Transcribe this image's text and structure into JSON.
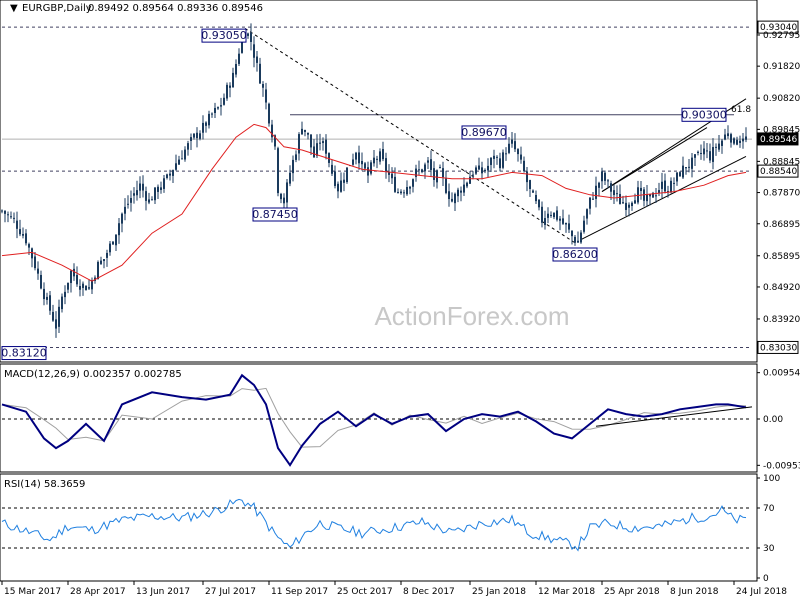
{
  "header": {
    "symbol": "EURGBP,Daily",
    "ohlc": "0.89492 0.89564 0.89336 0.89546"
  },
  "watermark": "ActionForex.com",
  "colors": {
    "candle": "#1a3a5c",
    "ma": "#e02020",
    "macd": "#000080",
    "signal": "#a0a0a0",
    "rsi": "#2080e0",
    "label_border": "#000080",
    "current_bg": "#000000"
  },
  "chart_data": [
    {
      "type": "candlestick",
      "title": "EURGBP,Daily",
      "ylim": [
        0.827,
        0.9345
      ],
      "y_ticks": [
        "0.93040",
        "0.92795",
        "0.91820",
        "0.90820",
        "0.89845",
        "0.89546",
        "0.88845",
        "0.88540",
        "0.87870",
        "0.86895",
        "0.85895",
        "0.84920",
        "0.83920",
        "0.83030"
      ],
      "x_ticks": [
        "15 Mar 2017",
        "28 Apr 2017",
        "13 Jun 2017",
        "27 Jul 2017",
        "11 Sep 2017",
        "25 Oct 2017",
        "8 Dec 2017",
        "25 Jan 2018",
        "12 Mar 2018",
        "25 Apr 2018",
        "8 Jun 2018",
        "24 Jul 2018"
      ],
      "close_path": [
        [
          0,
          0.873
        ],
        [
          4,
          0.87
        ],
        [
          8,
          0.864
        ],
        [
          11,
          0.856
        ],
        [
          14,
          0.847
        ],
        [
          16,
          0.842
        ],
        [
          18,
          0.837
        ],
        [
          20,
          0.846
        ],
        [
          23,
          0.854
        ],
        [
          26,
          0.85
        ],
        [
          29,
          0.849
        ],
        [
          32,
          0.856
        ],
        [
          34,
          0.858
        ],
        [
          37,
          0.864
        ],
        [
          40,
          0.872
        ],
        [
          43,
          0.877
        ],
        [
          46,
          0.881
        ],
        [
          49,
          0.876
        ],
        [
          52,
          0.88
        ],
        [
          55,
          0.883
        ],
        [
          58,
          0.888
        ],
        [
          61,
          0.892
        ],
        [
          64,
          0.896
        ],
        [
          67,
          0.899
        ],
        [
          70,
          0.903
        ],
        [
          73,
          0.906
        ],
        [
          75,
          0.911
        ],
        [
          77,
          0.915
        ],
        [
          79,
          0.923
        ],
        [
          81,
          0.93
        ],
        [
          83,
          0.926
        ],
        [
          85,
          0.918
        ],
        [
          87,
          0.911
        ],
        [
          89,
          0.902
        ],
        [
          91,
          0.893
        ],
        [
          92,
          0.88
        ],
        [
          94,
          0.876
        ],
        [
          96,
          0.885
        ],
        [
          98,
          0.892
        ],
        [
          100,
          0.9
        ],
        [
          102,
          0.896
        ],
        [
          104,
          0.89
        ],
        [
          106,
          0.895
        ],
        [
          108,
          0.892
        ],
        [
          110,
          0.885
        ],
        [
          112,
          0.88
        ],
        [
          114,
          0.884
        ],
        [
          116,
          0.888
        ],
        [
          118,
          0.892
        ],
        [
          120,
          0.887
        ],
        [
          122,
          0.884
        ],
        [
          124,
          0.889
        ],
        [
          126,
          0.89
        ],
        [
          128,
          0.886
        ],
        [
          130,
          0.882
        ],
        [
          132,
          0.879
        ],
        [
          134,
          0.88
        ],
        [
          136,
          0.882
        ],
        [
          138,
          0.885
        ],
        [
          140,
          0.886
        ],
        [
          142,
          0.888
        ],
        [
          144,
          0.883
        ],
        [
          146,
          0.885
        ],
        [
          148,
          0.88
        ],
        [
          150,
          0.876
        ],
        [
          152,
          0.879
        ],
        [
          154,
          0.881
        ],
        [
          156,
          0.884
        ],
        [
          158,
          0.886
        ],
        [
          160,
          0.885
        ],
        [
          162,
          0.887
        ],
        [
          164,
          0.89
        ],
        [
          166,
          0.888
        ],
        [
          168,
          0.892
        ],
        [
          170,
          0.894
        ],
        [
          172,
          0.89
        ],
        [
          174,
          0.885
        ],
        [
          176,
          0.879
        ],
        [
          178,
          0.875
        ],
        [
          180,
          0.87
        ],
        [
          182,
          0.873
        ],
        [
          184,
          0.872
        ],
        [
          186,
          0.87
        ],
        [
          188,
          0.868
        ],
        [
          190,
          0.865
        ],
        [
          192,
          0.863
        ],
        [
          194,
          0.87
        ],
        [
          196,
          0.876
        ],
        [
          198,
          0.88
        ],
        [
          200,
          0.884
        ],
        [
          202,
          0.881
        ],
        [
          204,
          0.878
        ],
        [
          206,
          0.876
        ],
        [
          208,
          0.875
        ],
        [
          210,
          0.877
        ],
        [
          212,
          0.879
        ],
        [
          214,
          0.876
        ],
        [
          216,
          0.877
        ],
        [
          218,
          0.879
        ],
        [
          220,
          0.881
        ],
        [
          222,
          0.88
        ],
        [
          224,
          0.882
        ],
        [
          226,
          0.885
        ],
        [
          228,
          0.887
        ],
        [
          230,
          0.888
        ],
        [
          232,
          0.89
        ],
        [
          234,
          0.892
        ],
        [
          236,
          0.89
        ],
        [
          238,
          0.893
        ],
        [
          240,
          0.895
        ],
        [
          242,
          0.898
        ],
        [
          244,
          0.894
        ],
        [
          246,
          0.896
        ],
        [
          248,
          0.8955
        ]
      ],
      "ma_path": [
        [
          0,
          0.859
        ],
        [
          10,
          0.86
        ],
        [
          20,
          0.856
        ],
        [
          30,
          0.851
        ],
        [
          40,
          0.856
        ],
        [
          50,
          0.866
        ],
        [
          60,
          0.872
        ],
        [
          70,
          0.886
        ],
        [
          78,
          0.896
        ],
        [
          84,
          0.9
        ],
        [
          88,
          0.899
        ],
        [
          94,
          0.893
        ],
        [
          100,
          0.892
        ],
        [
          110,
          0.889
        ],
        [
          120,
          0.886
        ],
        [
          130,
          0.885
        ],
        [
          140,
          0.884
        ],
        [
          150,
          0.883
        ],
        [
          160,
          0.883
        ],
        [
          170,
          0.885
        ],
        [
          180,
          0.884
        ],
        [
          188,
          0.88
        ],
        [
          196,
          0.878
        ],
        [
          204,
          0.877
        ],
        [
          214,
          0.878
        ],
        [
          224,
          0.879
        ],
        [
          234,
          0.881
        ],
        [
          242,
          0.884
        ],
        [
          248,
          0.885
        ]
      ],
      "labels": [
        {
          "text": "0.93050",
          "x": 80,
          "y": 0.9305
        },
        {
          "text": "0.87450",
          "x": 91,
          "y": 0.8745
        },
        {
          "text": "0.89670",
          "x": 168,
          "y": 0.8967
        },
        {
          "text": "0.86200",
          "x": 191,
          "y": 0.862
        },
        {
          "text": "0.90300",
          "x": 242,
          "y": 0.903
        },
        {
          "text": "0.83120",
          "x": 18,
          "y": 0.8312
        }
      ],
      "fib_label": "61.8",
      "hlines": [
        0.9304,
        0.903,
        0.8954,
        0.8854,
        0.8303
      ],
      "x_range": [
        0,
        250
      ]
    },
    {
      "type": "line",
      "title": "MACD(12,26,9) 0.002357 0.002785",
      "ylim": [
        -0.0105,
        0.0105
      ],
      "y_ticks": [
        "0.00954",
        "0.00",
        "-0.009538"
      ]
    },
    {
      "type": "line",
      "title": "RSI(14) 58.3659",
      "ylim": [
        0,
        100
      ],
      "y_ticks": [
        "100",
        "70",
        "30",
        "0"
      ]
    }
  ]
}
